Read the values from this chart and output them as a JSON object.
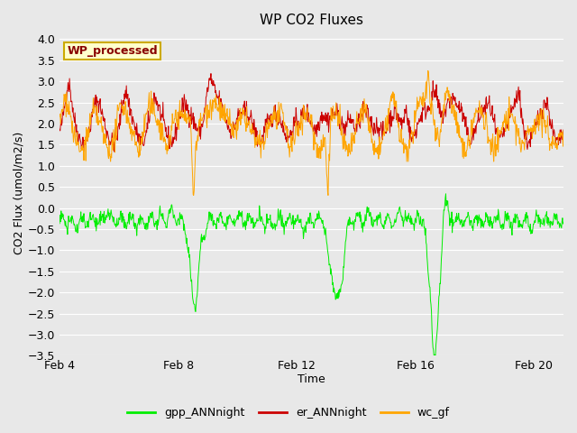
{
  "title": "WP CO2 Fluxes",
  "xlabel": "Time",
  "ylabel": "CO2 Flux (umol/m2/s)",
  "ylim": [
    -3.5,
    4.2
  ],
  "yticks": [
    -3.5,
    -3.0,
    -2.5,
    -2.0,
    -1.5,
    -1.0,
    -0.5,
    0.0,
    0.5,
    1.0,
    1.5,
    2.0,
    2.5,
    3.0,
    3.5,
    4.0
  ],
  "xtick_labels": [
    "Feb 4",
    "Feb 8",
    "Feb 12",
    "Feb 16",
    "Feb 20"
  ],
  "xtick_days": [
    0,
    4,
    8,
    12,
    16
  ],
  "xlim": [
    0,
    17
  ],
  "color_gpp": "#00EE00",
  "color_er": "#CC0000",
  "color_wc": "#FFA500",
  "fig_bg": "#E8E8E8",
  "plot_bg": "#E8E8E8",
  "grid_color": "#FFFFFF",
  "legend_box_facecolor": "#FFFFCC",
  "legend_box_edgecolor": "#CCAA00",
  "legend_text_color": "#880000",
  "legend_text": "WP_processed",
  "legend_labels": [
    "gpp_ANNnight",
    "er_ANNnight",
    "wc_gf"
  ],
  "title_fontsize": 11,
  "axis_label_fontsize": 9,
  "tick_fontsize": 9,
  "legend_fontsize": 9,
  "linewidth_data": 0.7,
  "seed": 42,
  "n_points": 1020
}
